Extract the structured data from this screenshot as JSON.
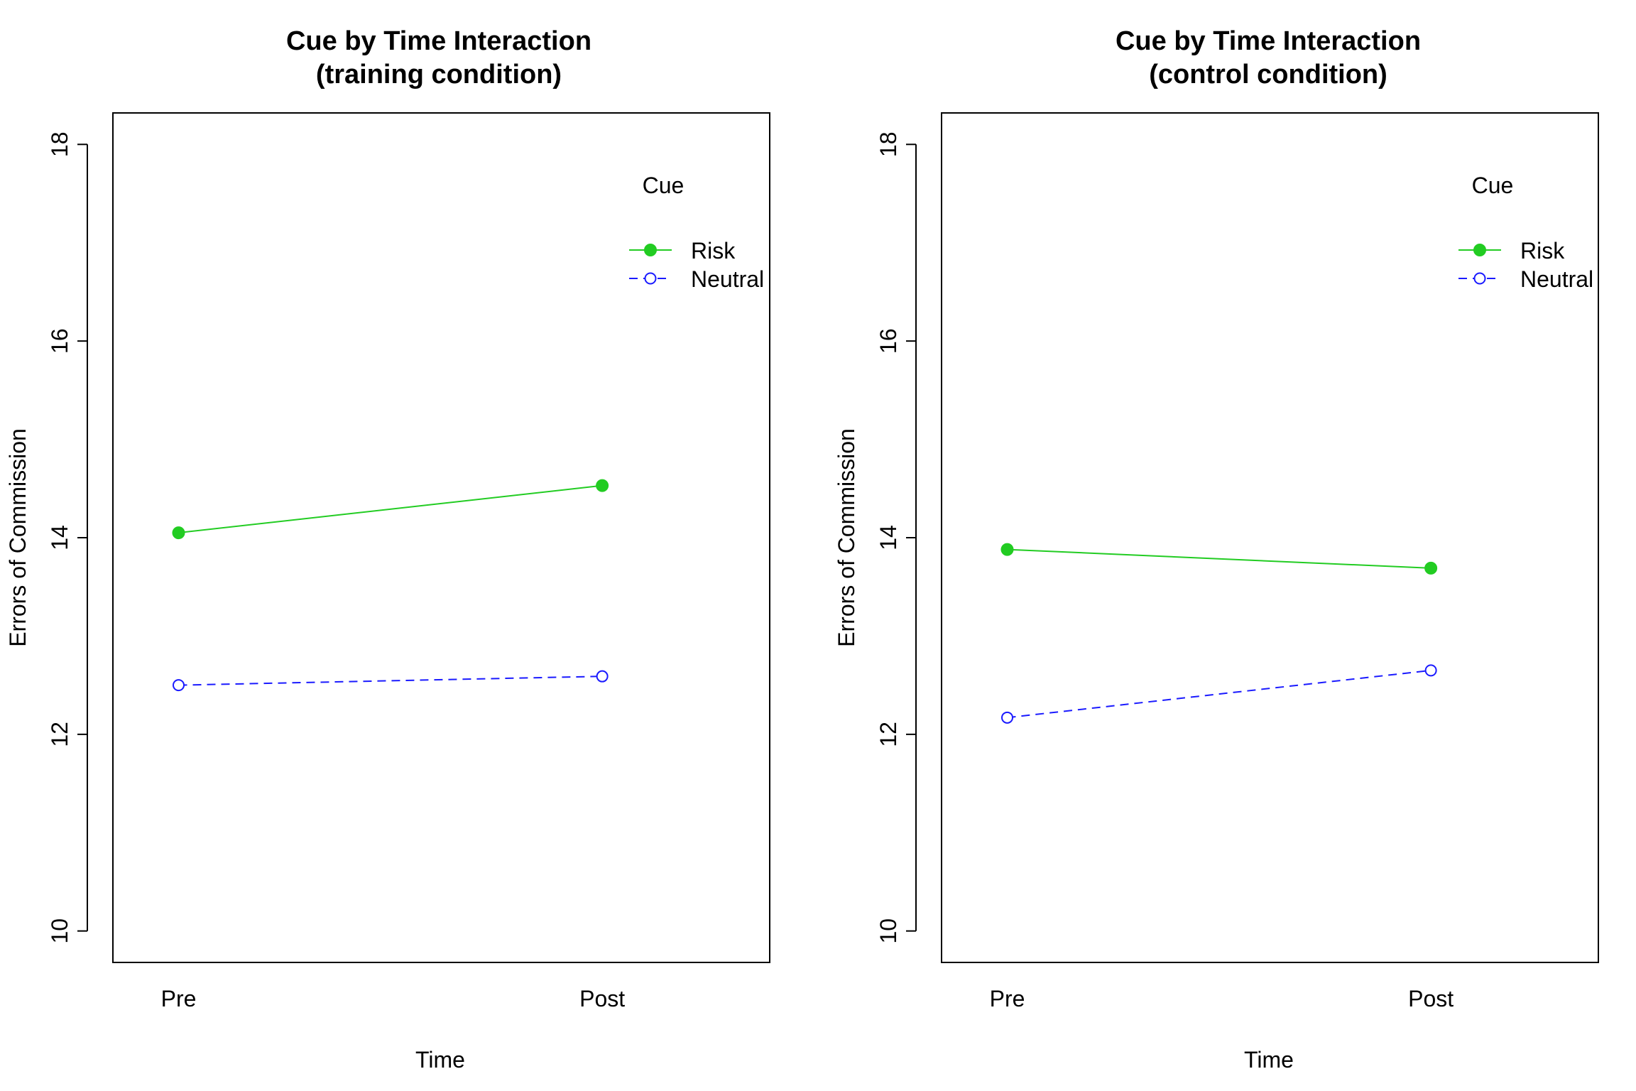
{
  "chart_data": [
    {
      "type": "line",
      "title": "Cue by Time Interaction",
      "subtitle": "(training condition)",
      "xlabel": "Time",
      "ylabel": "Errors of Commission",
      "categories": [
        "Pre",
        "Post"
      ],
      "yticks": [
        10,
        12,
        14,
        16,
        18
      ],
      "ylim": [
        9.68,
        18.32
      ],
      "grid": false,
      "legend": {
        "title": "Cue",
        "position": "top-right"
      },
      "series": [
        {
          "name": "Risk",
          "values": [
            14.05,
            14.53
          ],
          "color": "#22cc22",
          "marker": "filled-circle",
          "line": "solid"
        },
        {
          "name": "Neutral",
          "values": [
            12.5,
            12.59
          ],
          "color": "#1a1aff",
          "marker": "open-circle",
          "line": "dashed"
        }
      ]
    },
    {
      "type": "line",
      "title": "Cue by Time Interaction",
      "subtitle": "(control condition)",
      "xlabel": "Time",
      "ylabel": "Errors of Commission",
      "categories": [
        "Pre",
        "Post"
      ],
      "yticks": [
        10,
        12,
        14,
        16,
        18
      ],
      "ylim": [
        9.68,
        18.32
      ],
      "grid": false,
      "legend": {
        "title": "Cue",
        "position": "top-right"
      },
      "series": [
        {
          "name": "Risk",
          "values": [
            13.88,
            13.69
          ],
          "color": "#22cc22",
          "marker": "filled-circle",
          "line": "solid"
        },
        {
          "name": "Neutral",
          "values": [
            12.17,
            12.65
          ],
          "color": "#1a1aff",
          "marker": "open-circle",
          "line": "dashed"
        }
      ]
    }
  ]
}
